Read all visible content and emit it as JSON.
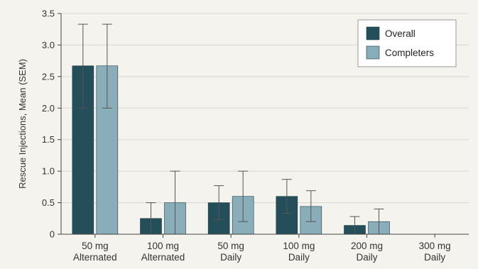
{
  "chart_data": {
    "type": "bar",
    "ylabel": "Rescue Injections, Mean (SEM)",
    "ylim": [
      0,
      3.5
    ],
    "yticks": [
      "0",
      "0.5",
      "1.0",
      "1.5",
      "2.0",
      "2.5",
      "3.0",
      "3.5"
    ],
    "ytick_values": [
      0,
      0.5,
      1.0,
      1.5,
      2.0,
      2.5,
      3.0,
      3.5
    ],
    "categories": [
      [
        "50 mg",
        "Alternated"
      ],
      [
        "100 mg",
        "Alternated"
      ],
      [
        "50 mg",
        "Daily"
      ],
      [
        "100 mg",
        "Daily"
      ],
      [
        "200 mg",
        "Daily"
      ],
      [
        "300 mg",
        "Daily"
      ]
    ],
    "legend_position": "top-right",
    "grid": "horizontal",
    "series": [
      {
        "name": "Overall",
        "color": "#234e5a",
        "values": [
          2.67,
          0.25,
          0.5,
          0.6,
          0.14,
          0
        ],
        "err_low": [
          2.0,
          0,
          0.23,
          0.33,
          0,
          0
        ],
        "err_high": [
          3.33,
          0.5,
          0.77,
          0.87,
          0.28,
          0
        ]
      },
      {
        "name": "Completers",
        "color": "#89adb9",
        "values": [
          2.67,
          0.5,
          0.6,
          0.44,
          0.2,
          0
        ],
        "err_low": [
          2.0,
          0,
          0.2,
          0.2,
          0,
          0
        ],
        "err_high": [
          3.33,
          1.0,
          1.0,
          0.69,
          0.4,
          0
        ]
      }
    ]
  }
}
